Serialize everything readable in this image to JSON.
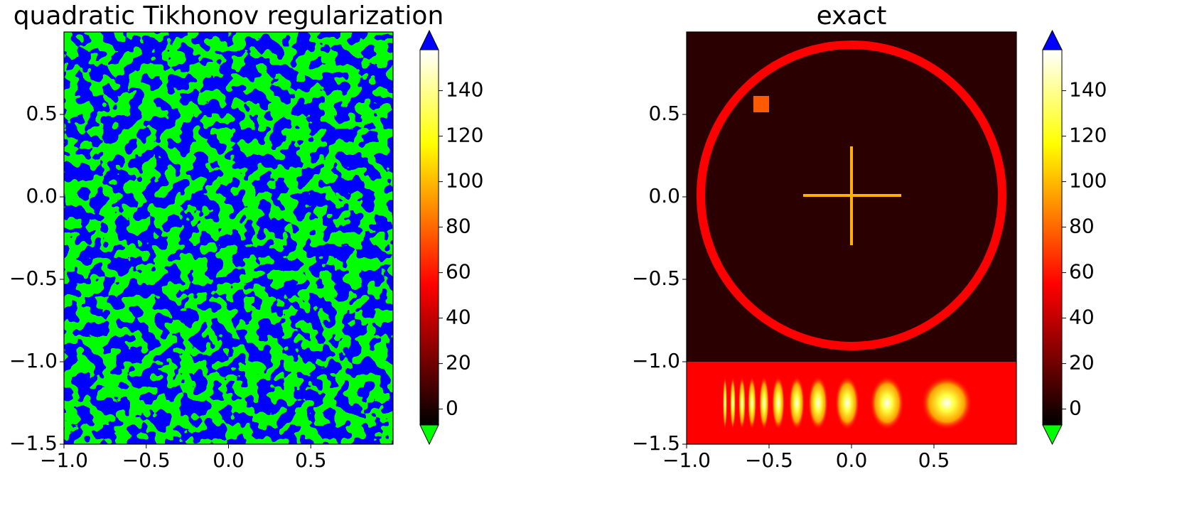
{
  "chart_data": [
    {
      "type": "heatmap",
      "title": "quadratic Tikhonov regularization",
      "xlim": [
        -1,
        1
      ],
      "ylim": [
        -1.5,
        1
      ],
      "xticks": [
        {
          "value": -1,
          "label": "−1.0"
        },
        {
          "value": -0.5,
          "label": "−0.5"
        },
        {
          "value": 0,
          "label": "0.0"
        },
        0.5
      ],
      "yticks": [
        {
          "value": -1.5,
          "label": "−1.5"
        },
        {
          "value": -1,
          "label": "−1.0"
        },
        {
          "value": -0.5,
          "label": "−0.5"
        },
        {
          "value": 0,
          "label": "0.0"
        },
        0.5
      ],
      "colorbar": {
        "cmap": "hot",
        "clim": [
          -7,
          158
        ],
        "ticks": [
          0,
          20,
          40,
          60,
          80,
          100,
          120,
          140
        ],
        "over_color": "#0000ff",
        "under_color": "#00ff00"
      }
    },
    {
      "type": "heatmap",
      "title": "exact",
      "xlim": [
        -1,
        1
      ],
      "ylim": [
        -1.5,
        1
      ],
      "xticks": [
        {
          "value": -1,
          "label": "−1.0"
        },
        {
          "value": -0.5,
          "label": "−0.5"
        },
        {
          "value": 0,
          "label": "0.0"
        },
        0.5
      ],
      "yticks": [
        {
          "value": -1.5,
          "label": "−1.5"
        },
        {
          "value": -1,
          "label": "−1.0"
        },
        {
          "value": -0.5,
          "label": "−0.5"
        },
        {
          "value": 0,
          "label": "0.0"
        },
        0.5
      ],
      "colorbar": {
        "cmap": "hot",
        "clim": [
          -7,
          158
        ],
        "ticks": [
          0,
          20,
          40,
          60,
          80,
          100,
          120,
          140
        ],
        "over_color": "#0000ff",
        "under_color": "#00ff00"
      }
    }
  ]
}
